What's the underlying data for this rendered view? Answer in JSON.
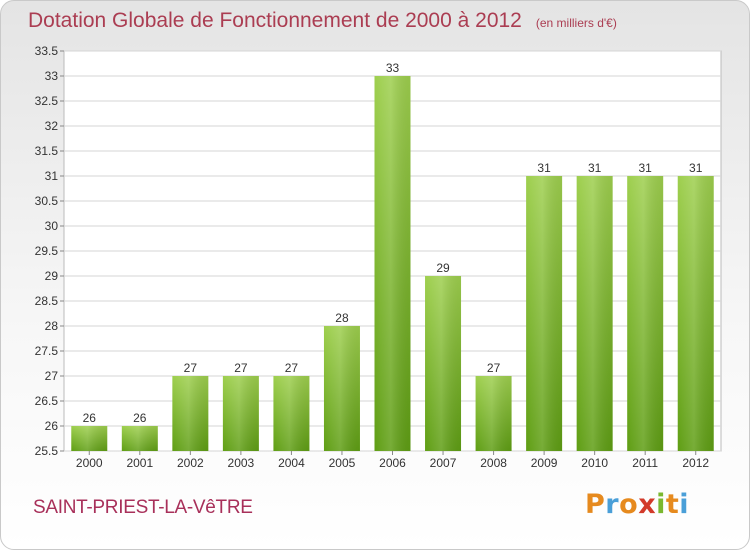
{
  "header": {
    "title": "Dotation Globale de Fonctionnement de 2000 à 2012",
    "unit": "(en milliers d'€)"
  },
  "footer": {
    "city": "SAINT-PRIEST-LA-VêTRE",
    "logo_text": "Proxiti"
  },
  "colors": {
    "bar_top": "#9ecf4e",
    "bar_bottom": "#5f9e14",
    "title": "#ab3d52",
    "city": "#a8305a",
    "logo": [
      "#e68a1e",
      "#4a9fd8",
      "#e68a1e",
      "#d23a2a",
      "#7ab830",
      "#e68a1e",
      "#4a9fd8"
    ]
  },
  "chart_data": {
    "type": "bar",
    "title": "Dotation Globale de Fonctionnement de 2000 à 2012",
    "subtitle": "(en milliers d'€)",
    "categories": [
      "2000",
      "2001",
      "2002",
      "2003",
      "2004",
      "2005",
      "2006",
      "2007",
      "2008",
      "2009",
      "2010",
      "2011",
      "2012"
    ],
    "values": [
      26,
      26,
      27,
      27,
      27,
      28,
      33,
      29,
      27,
      31,
      31,
      31,
      31
    ],
    "ylim": [
      25.5,
      33.5
    ],
    "yticks": [
      "25.5",
      "26",
      "26.5",
      "27",
      "27.5",
      "28",
      "28.5",
      "29",
      "29.5",
      "30",
      "30.5",
      "31",
      "31.5",
      "32",
      "32.5",
      "33",
      "33.5"
    ],
    "grid": true
  }
}
